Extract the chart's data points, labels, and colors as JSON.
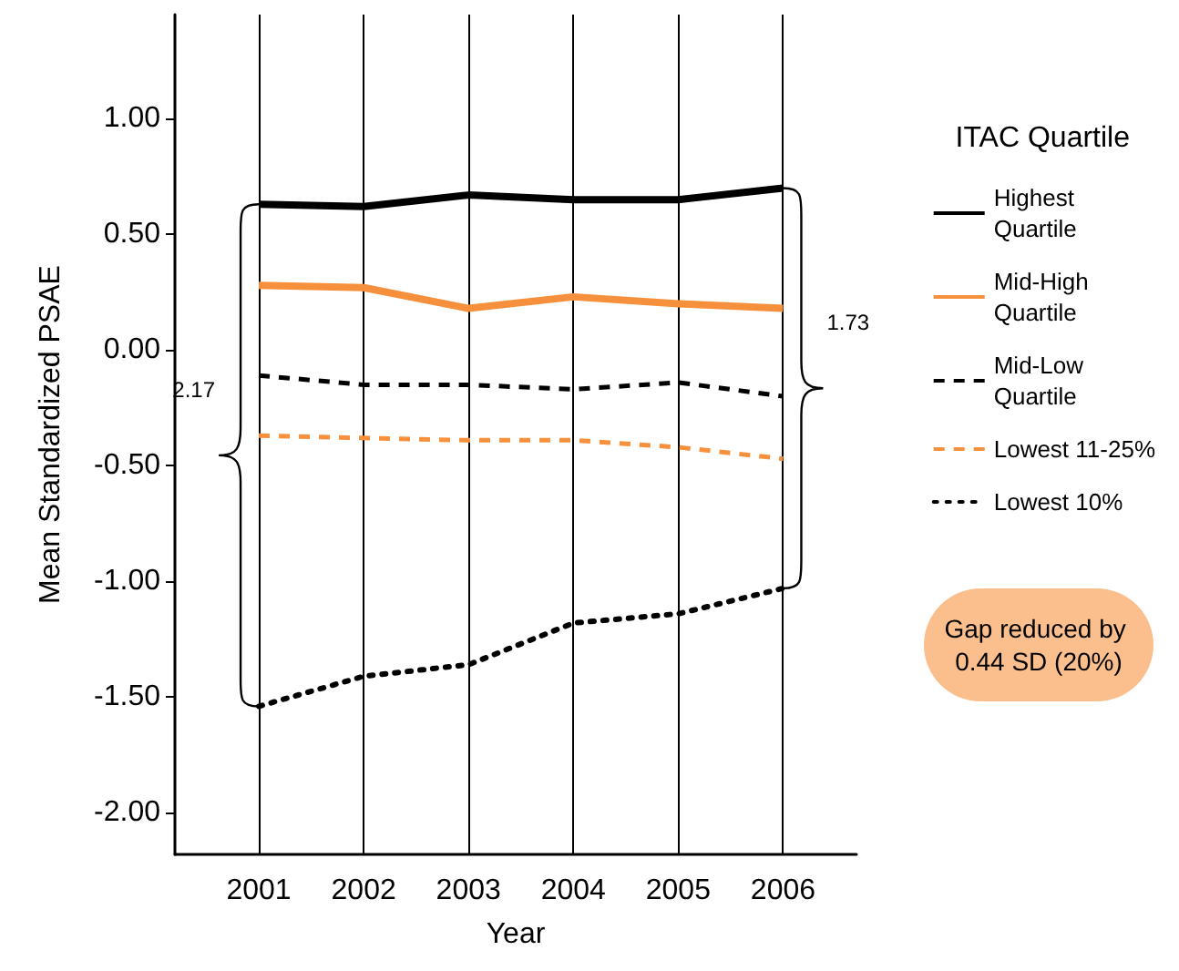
{
  "chart_data": {
    "type": "line",
    "xlabel": "Year",
    "ylabel": "Mean Standardized PSAE",
    "legend_title": "ITAC Quartile",
    "x": [
      2001,
      2002,
      2003,
      2004,
      2005,
      2006
    ],
    "xlim": [
      2000.2,
      2006.7
    ],
    "xticks": [
      2001,
      2002,
      2003,
      2004,
      2005,
      2006
    ],
    "ylim": [
      -2.18,
      1.45
    ],
    "yticks": [
      {
        "value": -2,
        "label": "-2.00"
      },
      {
        "value": -1.5,
        "label": "-1.50"
      },
      {
        "value": -1,
        "label": "-1.00"
      },
      {
        "value": -0.5,
        "label": "-0.50"
      },
      {
        "value": 0,
        "label": "0.00"
      },
      {
        "value": 0.5,
        "label": "0.50"
      },
      {
        "value": 1,
        "label": "1.00"
      }
    ],
    "grid": "x",
    "legend": "right",
    "marker": "none",
    "series": [
      {
        "name": "Highest Quartile",
        "color": "#000000",
        "line_style": "solid",
        "values": [
          0.63,
          0.62,
          0.67,
          0.65,
          0.65,
          0.7
        ]
      },
      {
        "name": "Mid-High Quartile",
        "color": "#f7903d",
        "line_style": "solid",
        "values": [
          0.28,
          0.27,
          0.18,
          0.23,
          0.2,
          0.18
        ]
      },
      {
        "name": "Mid-Low Quartile",
        "color": "#000000",
        "line_style": "dashed",
        "values": [
          -0.11,
          -0.15,
          -0.15,
          -0.17,
          -0.14,
          -0.2
        ]
      },
      {
        "name": "Lowest 11-25%",
        "color": "#f7903d",
        "line_style": "dashed",
        "values": [
          -0.37,
          -0.38,
          -0.39,
          -0.39,
          -0.42,
          -0.47
        ]
      },
      {
        "name": "Lowest 10%",
        "color": "#000000",
        "line_style": "dotted",
        "values": [
          -1.54,
          -1.41,
          -1.36,
          -1.18,
          -1.14,
          -1.03
        ]
      }
    ],
    "annotations": [
      "2.17",
      "1.73",
      "Gap reduced by 0.44 SD (20%)"
    ]
  }
}
